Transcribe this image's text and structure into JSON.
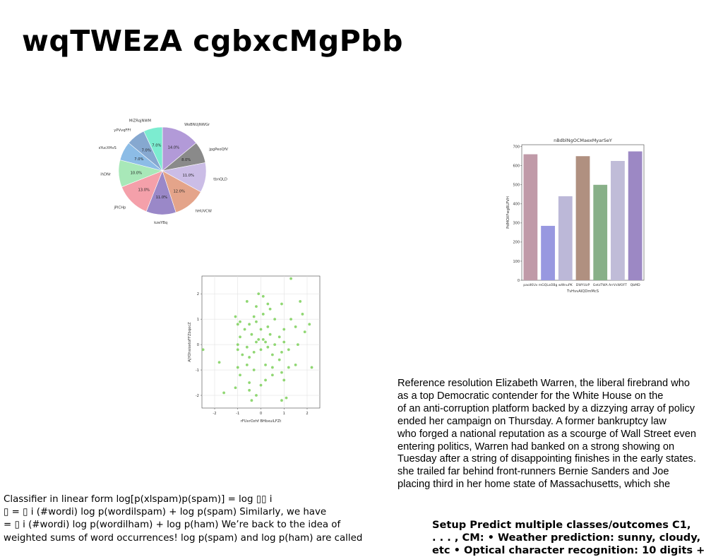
{
  "title": "wqTWEzA cgbxcMgPbb",
  "chart_data": [
    {
      "type": "pie",
      "categories": [
        "WoBNUjNWGr",
        "jpgPeoQfV",
        "tbnQLD",
        "hHUVCW",
        "kzeYBq",
        "jPlCHp",
        "ihDNr",
        "sYucXHvS",
        "yPVvqFFf",
        "MiZRqjNWM"
      ],
      "values": [
        14.0,
        8.0,
        11.0,
        12.0,
        11.0,
        13.0,
        10.0,
        7.0,
        7.0,
        7.0
      ],
      "labels": [
        "14.0%",
        "8.0%",
        "11.0%",
        "12.0%",
        "11.0%",
        "13.0%",
        "10.0%",
        "7.0%",
        "7.0%",
        "7.0%"
      ],
      "colors": [
        "#b29ad8",
        "#8a8a8a",
        "#cbbde6",
        "#e4a48a",
        "#9a88c8",
        "#f4a0aa",
        "#a8e8b8",
        "#8cbce6",
        "#86a8d0",
        "#7cecd0"
      ]
    },
    {
      "type": "bar",
      "title": "nBdblNgOCMaexMyarSeY",
      "xlabel": "TvHvvAIQDmMcS",
      "ylabel": "PdMOXFwgBLPVH",
      "categories": [
        "paoiKIUv",
        "mGQLaOBg",
        "wWnuPK",
        "DWYUzP",
        "GetzTWA",
        "ArrVsWOFT",
        "QbMD"
      ],
      "values": [
        660,
        285,
        440,
        650,
        500,
        625,
        675
      ],
      "colors": [
        "#c09aa8",
        "#9898e0",
        "#bcb8d8",
        "#b09080",
        "#88b088",
        "#c0bcd8",
        "#9c88c4"
      ],
      "yticks": [
        0,
        100,
        200,
        300,
        400,
        500,
        600,
        700
      ],
      "ylim": [
        0,
        710
      ]
    },
    {
      "type": "scatter",
      "xlabel": "rFUxrOzhf BHbxuiLFZt",
      "ylabel": "AJYOhsioxtoFFZbqocZ",
      "xticks": [
        -2,
        -1,
        0,
        1,
        2
      ],
      "yticks": [
        -2,
        -1,
        0,
        1,
        2
      ],
      "xlim": [
        -2.55,
        2.55
      ],
      "ylim": [
        -2.5,
        2.7
      ],
      "color": "#7cd05a",
      "points": [
        [
          1.3,
          2.6
        ],
        [
          -0.1,
          2.0
        ],
        [
          0.1,
          1.9
        ],
        [
          -0.6,
          1.7
        ],
        [
          1.7,
          1.7
        ],
        [
          0.3,
          1.6
        ],
        [
          0.9,
          1.6
        ],
        [
          -0.2,
          1.5
        ],
        [
          0.4,
          1.4
        ],
        [
          1.8,
          1.2
        ],
        [
          -0.3,
          1.1
        ],
        [
          -1.1,
          1.1
        ],
        [
          0.1,
          1.2
        ],
        [
          -0.9,
          0.9
        ],
        [
          0.6,
          1.0
        ],
        [
          1.3,
          1.0
        ],
        [
          -1.0,
          0.8
        ],
        [
          -0.5,
          0.8
        ],
        [
          -0.2,
          0.9
        ],
        [
          2.1,
          0.8
        ],
        [
          0.3,
          0.7
        ],
        [
          1.0,
          0.6
        ],
        [
          1.5,
          0.7
        ],
        [
          -0.7,
          0.6
        ],
        [
          0.0,
          0.6
        ],
        [
          1.9,
          0.5
        ],
        [
          -0.4,
          0.4
        ],
        [
          0.4,
          0.4
        ],
        [
          0.8,
          0.3
        ],
        [
          -0.9,
          0.3
        ],
        [
          -0.1,
          0.2
        ],
        [
          0.1,
          0.2
        ],
        [
          0.2,
          0.1
        ],
        [
          -0.2,
          0.1
        ],
        [
          1.6,
          0.0
        ],
        [
          1.0,
          0.1
        ],
        [
          -1.0,
          0.0
        ],
        [
          0.6,
          0.0
        ],
        [
          -0.6,
          -0.1
        ],
        [
          0.3,
          -0.1
        ],
        [
          1.2,
          -0.2
        ],
        [
          -1.0,
          -0.2
        ],
        [
          0.0,
          -0.2
        ],
        [
          -2.5,
          -0.2
        ],
        [
          0.9,
          -0.3
        ],
        [
          -0.3,
          -0.3
        ],
        [
          -0.8,
          -0.4
        ],
        [
          0.5,
          -0.4
        ],
        [
          -0.5,
          -0.5
        ],
        [
          0.8,
          -0.6
        ],
        [
          -1.8,
          -0.7
        ],
        [
          0.2,
          -0.8
        ],
        [
          1.5,
          -0.8
        ],
        [
          -0.6,
          -0.8
        ],
        [
          -1.0,
          -0.9
        ],
        [
          0.5,
          -0.9
        ],
        [
          1.2,
          -0.9
        ],
        [
          2.2,
          -0.9
        ],
        [
          -0.3,
          -1.0
        ],
        [
          0.9,
          -1.1
        ],
        [
          -0.9,
          -1.2
        ],
        [
          0.5,
          -1.2
        ],
        [
          0.2,
          -1.4
        ],
        [
          -0.5,
          -1.5
        ],
        [
          1.0,
          -1.4
        ],
        [
          0.0,
          -1.6
        ],
        [
          -1.1,
          -1.7
        ],
        [
          -0.5,
          -1.8
        ],
        [
          -1.6,
          -1.9
        ],
        [
          -0.2,
          -2.0
        ],
        [
          1.1,
          -2.1
        ],
        [
          -0.4,
          -2.2
        ],
        [
          0.9,
          -2.2
        ]
      ]
    }
  ],
  "paragraph": {
    "lines": [
      "Reference resolution Elizabeth Warren, the liberal firebrand who",
      "as a top Democratic contender for the White House on the",
      "of an anti-corruption platform backed by a dizzying array of policy",
      "ended her campaign on Thursday. A former bankruptcy law",
      "who forged a national reputation as a scourge of Wall Street even",
      "entering politics, Warren had banked on a strong showing on",
      "Tuesday after a string of disappointing finishes in the early states.",
      "she trailed far behind front-runners Bernie Sanders and Joe",
      "placing third in her home state of Massachusetts, which she"
    ]
  },
  "classifier_note": {
    "lines": [
      "Classifier in linear form log[p(xlspam)p(spam)] = log ▯▯ i",
      "▯ = ▯ i (#wordi) log p(wordilspam) + log p(spam) Similarly, we have",
      "= ▯ i (#wordi) log p(wordilham) + log p(ham) We’re back to the idea of",
      "weighted sums of word occurrences! log p(spam) and log p(ham) are called"
    ]
  },
  "setup_note": {
    "lines": [
      "Setup Predict multiple classes/outcomes C1,",
      ". . . , CM: • Weather prediction: sunny, cloudy,",
      "etc • Optical character recognition: 10 digits +"
    ]
  }
}
